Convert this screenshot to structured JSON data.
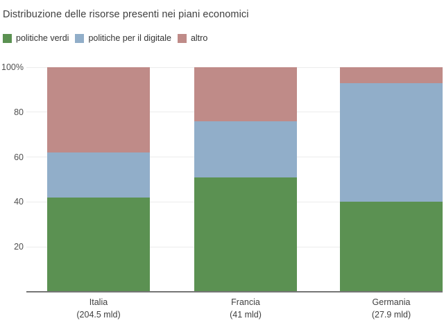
{
  "chart_data": {
    "type": "bar",
    "stacked": true,
    "percent": true,
    "title": "Distribuzione delle risorse presenti nei piani economici",
    "categories": [
      {
        "name": "Italia",
        "sublabel": "(204.5 mld)"
      },
      {
        "name": "Francia",
        "sublabel": "(41 mld)"
      },
      {
        "name": "Germania",
        "sublabel": "(27.9 mld)"
      }
    ],
    "series": [
      {
        "name": "politiche verdi",
        "color": "#5b9152",
        "values": [
          42,
          51,
          40
        ]
      },
      {
        "name": "politiche per il digitale",
        "color": "#91aec9",
        "values": [
          20,
          25,
          53
        ]
      },
      {
        "name": "altro",
        "color": "#bf8b88",
        "values": [
          38,
          24,
          7
        ]
      }
    ],
    "yticks": [
      {
        "value": 100,
        "label": "100%"
      },
      {
        "value": 80,
        "label": "80"
      },
      {
        "value": 60,
        "label": "60"
      },
      {
        "value": 40,
        "label": "40"
      },
      {
        "value": 20,
        "label": "20"
      }
    ],
    "ylim": [
      0,
      100
    ],
    "xlabel": "",
    "ylabel": "",
    "grid": true,
    "legend_position": "top"
  },
  "colors": {
    "gridline": "#ececec",
    "axis_line": "#757575",
    "title_text": "#3e3e3e",
    "tick_text": "#4f4f4f",
    "label_text": "#3f3f3f"
  }
}
